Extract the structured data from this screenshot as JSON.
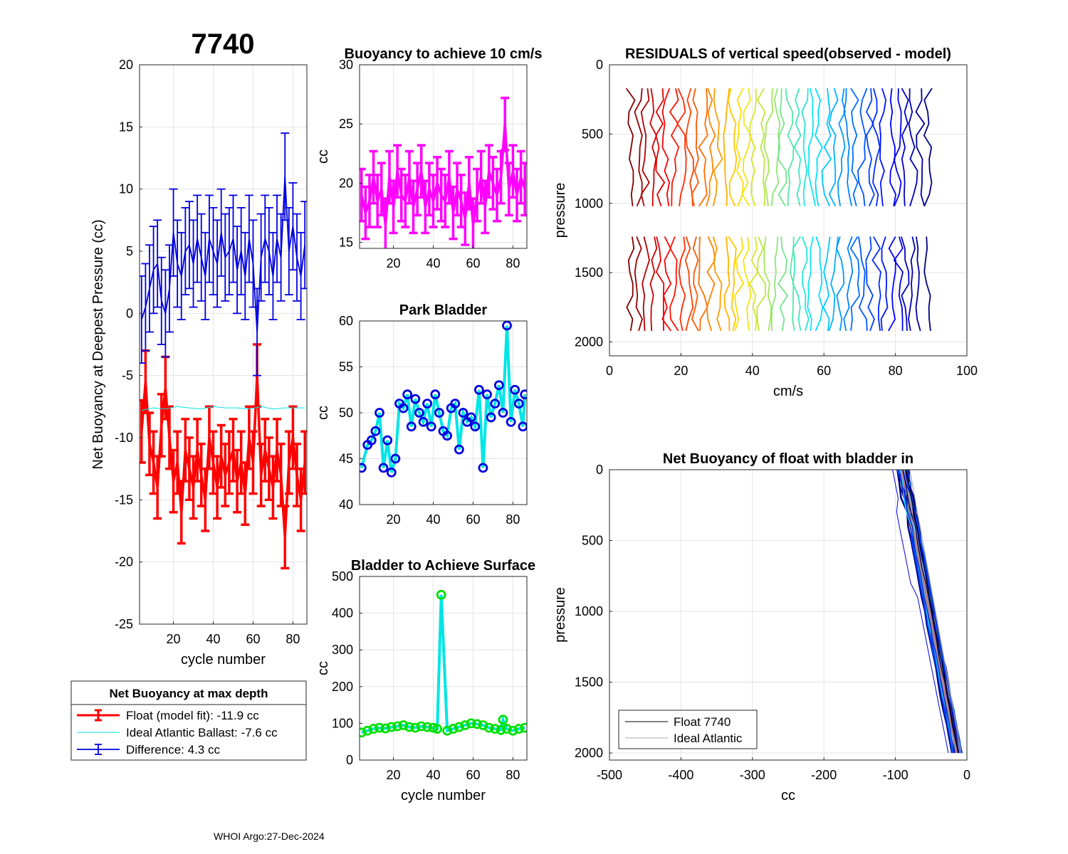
{
  "figure": {
    "float_id": "7740",
    "footer": "WHOI Argo:27-Dec-2024"
  },
  "chart_data": [
    {
      "id": "netbuoy",
      "type": "line",
      "title": "",
      "xlabel": "cycle number",
      "ylabel": "Net Buoyancy at Deepest Pressure (cc)",
      "xlim": [
        3,
        87
      ],
      "ylim": [
        -25,
        20
      ],
      "xticks": [
        20,
        40,
        60,
        80
      ],
      "yticks": [
        20,
        15,
        10,
        5,
        0,
        -5,
        -10,
        -15,
        -20,
        -25
      ],
      "grid": true,
      "series": [
        {
          "name": "Float (model fit)",
          "color": "#ff0000",
          "x": [
            4,
            6,
            8,
            10,
            12,
            14,
            16,
            18,
            20,
            22,
            24,
            26,
            28,
            30,
            32,
            34,
            36,
            38,
            40,
            42,
            44,
            46,
            48,
            50,
            52,
            54,
            56,
            58,
            60,
            62,
            64,
            66,
            68,
            70,
            72,
            74,
            76,
            78,
            80,
            82,
            84,
            86
          ],
          "y": [
            -9.5,
            -5.5,
            -10.5,
            -12,
            -14,
            -9,
            -6,
            -10,
            -13.5,
            -12,
            -16,
            -11,
            -12.5,
            -14,
            -11,
            -13,
            -15,
            -10,
            -12,
            -14,
            -11.5,
            -13,
            -12,
            -11,
            -13.5,
            -12,
            -14.5,
            -10,
            -12,
            -5,
            -13,
            -11,
            -12.5,
            -14,
            -11,
            -13,
            -18,
            -12,
            -10,
            -13,
            -15,
            -12
          ],
          "err": 2.5
        },
        {
          "name": "Ideal Atlantic Ballast",
          "color": "#00e5e5",
          "x": [
            4,
            10,
            16,
            22,
            28,
            34,
            40,
            46,
            52,
            58,
            64,
            70,
            76,
            82,
            86
          ],
          "y": [
            -7.8,
            -7.6,
            -7.7,
            -7.5,
            -7.6,
            -7.7,
            -7.5,
            -7.6,
            -7.6,
            -7.7,
            -7.5,
            -7.7,
            -7.6,
            -7.6,
            -7.6
          ]
        },
        {
          "name": "Difference",
          "color": "#0000e0",
          "x": [
            4,
            6,
            8,
            10,
            12,
            14,
            16,
            18,
            20,
            22,
            24,
            26,
            28,
            30,
            32,
            34,
            36,
            38,
            40,
            42,
            44,
            46,
            48,
            50,
            52,
            54,
            56,
            58,
            60,
            62,
            64,
            66,
            68,
            70,
            72,
            74,
            76,
            78,
            80,
            82,
            84,
            86
          ],
          "y": [
            -0.5,
            0.5,
            2,
            3.5,
            4,
            1,
            0,
            2,
            6.5,
            4,
            3,
            5,
            5.5,
            4,
            6,
            4.5,
            3,
            6,
            5,
            4,
            6.5,
            4.5,
            5,
            6,
            3.5,
            5,
            3,
            6,
            4,
            -1.5,
            4.5,
            6,
            5,
            3,
            6,
            4.5,
            11,
            5,
            7,
            4.5,
            3,
            5.5
          ],
          "err": 3.5
        }
      ],
      "legend": {
        "title": "Net Buoyancy at max depth",
        "entries": [
          "Float (model fit): -11.9 cc",
          "Ideal Atlantic Ballast:  -7.6 cc",
          "Difference:   4.3 cc"
        ]
      }
    },
    {
      "id": "buoy10",
      "type": "line",
      "title": "Buoyancy to achieve 10 cm/s",
      "xlabel": "",
      "ylabel": "cc",
      "xlim": [
        3,
        87
      ],
      "ylim": [
        14.5,
        30
      ],
      "xticks": [
        20,
        40,
        60,
        80
      ],
      "yticks": [
        30,
        25,
        20,
        15
      ],
      "grid": true,
      "series": [
        {
          "name": "buoyancy",
          "color": "#ff00ff",
          "x": [
            4,
            6,
            8,
            10,
            12,
            14,
            16,
            18,
            20,
            22,
            24,
            26,
            28,
            30,
            32,
            34,
            36,
            38,
            40,
            42,
            44,
            46,
            48,
            50,
            52,
            54,
            56,
            58,
            60,
            62,
            64,
            66,
            68,
            70,
            72,
            74,
            76,
            78,
            80,
            82,
            84,
            86
          ],
          "y": [
            19,
            17.5,
            18.5,
            20.5,
            18.5,
            19.5,
            16.5,
            20.5,
            18,
            21,
            19,
            18.5,
            20.5,
            18,
            19.5,
            21,
            18,
            19.5,
            18.5,
            20,
            19,
            18.5,
            20.5,
            17.5,
            19.5,
            18.5,
            17,
            20,
            16.5,
            19,
            20.5,
            18,
            21,
            20,
            19,
            20.5,
            25,
            19.5,
            21,
            19,
            20.5,
            19.5
          ],
          "err": 2.2
        }
      ]
    },
    {
      "id": "park",
      "type": "line",
      "title": "Park Bladder",
      "xlabel": "",
      "ylabel": "cc",
      "xlim": [
        3,
        87
      ],
      "ylim": [
        40,
        60
      ],
      "xticks": [
        20,
        40,
        60,
        80
      ],
      "yticks": [
        60,
        55,
        50,
        45,
        40
      ],
      "grid": true,
      "series": [
        {
          "name": "park bladder",
          "color": "#00e5e5",
          "markerColor": "#0000e0",
          "x": [
            4,
            7,
            9,
            11,
            13,
            15,
            17,
            19,
            21,
            23,
            25,
            27,
            29,
            31,
            33,
            35,
            37,
            39,
            41,
            43,
            45,
            47,
            49,
            51,
            53,
            55,
            57,
            59,
            61,
            63,
            65,
            67,
            69,
            71,
            73,
            75,
            77,
            79,
            81,
            83,
            85,
            86
          ],
          "y": [
            44,
            46.5,
            47,
            48,
            50,
            44,
            47,
            43.5,
            45,
            51,
            50.5,
            52,
            48.5,
            51.5,
            50,
            49,
            51,
            48.5,
            52,
            50,
            48,
            47.5,
            50.5,
            51,
            46,
            50,
            49,
            49.5,
            48.5,
            52.5,
            44,
            52,
            49.5,
            51,
            53,
            50,
            59.5,
            49,
            52.5,
            51,
            48.5,
            52
          ]
        }
      ]
    },
    {
      "id": "surface",
      "type": "line",
      "title": "Bladder to Achieve Surface",
      "xlabel": "cycle number",
      "ylabel": "cc",
      "xlim": [
        3,
        87
      ],
      "ylim": [
        0,
        500
      ],
      "xticks": [
        20,
        40,
        60,
        80
      ],
      "yticks": [
        500,
        400,
        300,
        200,
        100,
        0
      ],
      "grid": true,
      "series": [
        {
          "name": "surface bladder",
          "color": "#00e5e5",
          "markerColor": "#00e000",
          "x": [
            4,
            7,
            10,
            13,
            16,
            19,
            22,
            25,
            28,
            31,
            34,
            37,
            40,
            42,
            44,
            47,
            50,
            53,
            56,
            59,
            62,
            65,
            68,
            71,
            74,
            75,
            77,
            80,
            83,
            86
          ],
          "y": [
            75,
            80,
            85,
            88,
            86,
            90,
            92,
            95,
            90,
            88,
            92,
            90,
            88,
            85,
            450,
            80,
            85,
            90,
            95,
            100,
            98,
            95,
            88,
            85,
            82,
            110,
            85,
            80,
            85,
            88
          ]
        }
      ]
    },
    {
      "id": "residuals",
      "type": "line",
      "title": "RESIDUALS of vertical speed(observed - model)",
      "xlabel": "cm/s",
      "ylabel": "pressure",
      "xlim": [
        0,
        100
      ],
      "ylim": [
        0,
        2100
      ],
      "xticks": [
        0,
        20,
        40,
        60,
        80,
        100
      ],
      "yticks": [
        0,
        500,
        1000,
        1500,
        2000
      ],
      "grid": true,
      "profile_count": 42,
      "profile_x_range": [
        6,
        89
      ],
      "segments": [
        [
          170,
          1020
        ],
        [
          1240,
          2000
        ]
      ]
    },
    {
      "id": "netbladder",
      "type": "line",
      "title": "Net Buoyancy of float with bladder in",
      "xlabel": "cc",
      "ylabel": "pressure",
      "xlim": [
        -500,
        0
      ],
      "ylim": [
        0,
        2050
      ],
      "xticks": [
        -500,
        -400,
        -300,
        -200,
        -100,
        0
      ],
      "yticks": [
        0,
        500,
        1000,
        1500,
        2000
      ],
      "grid": true,
      "series": [
        {
          "name": "Float 7740",
          "color": "#000000",
          "top": [
            -85,
            0
          ],
          "bottom": [
            -12,
            2000
          ]
        },
        {
          "name": "Ideal Atlantic",
          "color": "#aaaaaa",
          "top": [
            -80,
            0
          ],
          "bottom": [
            -8,
            2000
          ]
        }
      ],
      "legend": {
        "entries": [
          "Float 7740",
          "Ideal Atlantic"
        ]
      }
    }
  ]
}
